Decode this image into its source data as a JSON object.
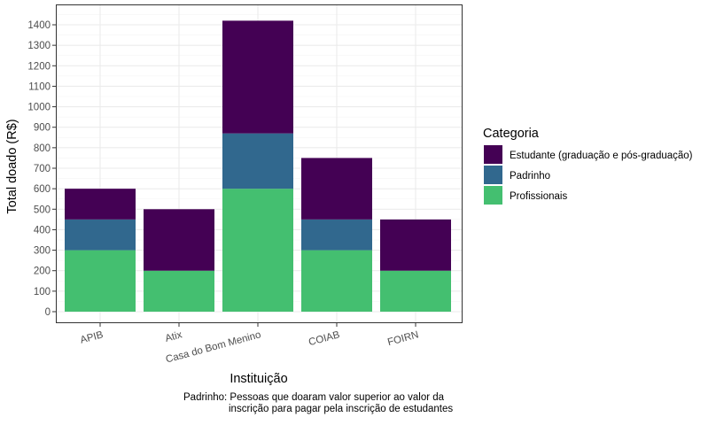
{
  "chart_data": {
    "type": "bar",
    "stacked": true,
    "xlabel": "Instituição",
    "ylabel": "Total doado (R$)",
    "categories": [
      "APIB",
      "Atix",
      "Casa do Bom Menino",
      "COIAB",
      "FOIRN"
    ],
    "series": [
      {
        "name": "Profissionais",
        "color": "#44BF70",
        "values": [
          300,
          200,
          600,
          300,
          200
        ]
      },
      {
        "name": "Padrinho",
        "color": "#31688E",
        "values": [
          150,
          0,
          270,
          150,
          0
        ]
      },
      {
        "name": "Estudante (graduação e pós-graduação)",
        "color": "#440154",
        "values": [
          150,
          300,
          550,
          300,
          250
        ]
      }
    ],
    "ylim": [
      0,
      1420
    ],
    "yticks": [
      0,
      100,
      200,
      300,
      400,
      500,
      600,
      700,
      800,
      900,
      1000,
      1100,
      1200,
      1300,
      1400
    ],
    "grid": true,
    "legend": {
      "title": "Categoria",
      "position": "right",
      "order": [
        "Estudante (graduação e pós-graduação)",
        "Padrinho",
        "Profissionais"
      ]
    },
    "caption": [
      "Padrinho: Pessoas que doaram valor superior ao valor da",
      "inscrição para pagar pela inscrição de estudantes"
    ],
    "colors": {
      "panel_border": "#333333",
      "grid_major": "#EBEBEB",
      "grid_minor": "#F5F5F5",
      "tick_text": "#4D4D4D",
      "title_text": "#000000"
    }
  }
}
